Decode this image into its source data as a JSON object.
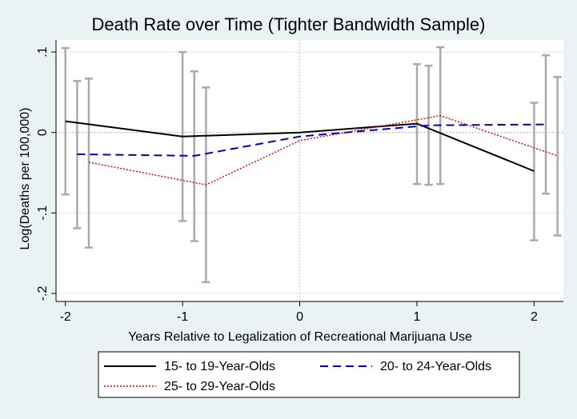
{
  "chart_data": {
    "type": "line",
    "title": "Death Rate over Time (Tighter Bandwidth Sample)",
    "xlabel": "Years Relative to Legalization of Recreational Marijuana Use",
    "ylabel": "Log(Deaths per 100,000)",
    "x_ticks": [
      -2,
      -1,
      0,
      1,
      2
    ],
    "x_tick_labels": [
      "-2",
      "-1",
      "0",
      "1",
      "2"
    ],
    "y_ticks": [
      0.1,
      0,
      -0.1,
      -0.2
    ],
    "y_tick_labels": [
      ".1",
      "0",
      "-.1",
      "-.2"
    ],
    "xlim": [
      -2.08,
      2.25
    ],
    "ylim": [
      -0.21,
      0.115
    ],
    "reference_line": {
      "x": 0,
      "y": 0
    },
    "grid": true,
    "legend_position": "bottom",
    "series": [
      {
        "name": "15- to 19-Year-Olds",
        "color": "#000000",
        "style": "solid",
        "x": [
          -2,
          -1,
          0,
          1,
          2
        ],
        "y": [
          0.014,
          -0.005,
          0.0,
          0.011,
          -0.048
        ],
        "ci": [
          [
            -0.077,
            0.105
          ],
          [
            -0.11,
            0.1
          ],
          null,
          [
            -0.064,
            0.085
          ],
          [
            -0.134,
            0.037
          ]
        ]
      },
      {
        "name": "20- to 24-Year-Olds",
        "color": "#0000cc",
        "style": "dashed",
        "x": [
          -1.9,
          -0.9,
          0,
          1.1,
          2.1
        ],
        "y": [
          -0.027,
          -0.029,
          -0.005,
          0.009,
          0.01
        ],
        "ci": [
          [
            -0.119,
            0.064
          ],
          [
            -0.135,
            0.076
          ],
          null,
          [
            -0.065,
            0.083
          ],
          [
            -0.076,
            0.096
          ]
        ]
      },
      {
        "name": "25- to 29-Year-Olds",
        "color": "#d00000",
        "style": "dotted",
        "x": [
          -1.8,
          -0.8,
          0,
          1.2,
          2.2
        ],
        "y": [
          -0.037,
          -0.065,
          -0.01,
          0.021,
          -0.029
        ],
        "ci": [
          [
            -0.143,
            0.067
          ],
          [
            -0.186,
            0.056
          ],
          null,
          [
            -0.064,
            0.106
          ],
          [
            -0.128,
            0.069
          ]
        ]
      }
    ]
  }
}
